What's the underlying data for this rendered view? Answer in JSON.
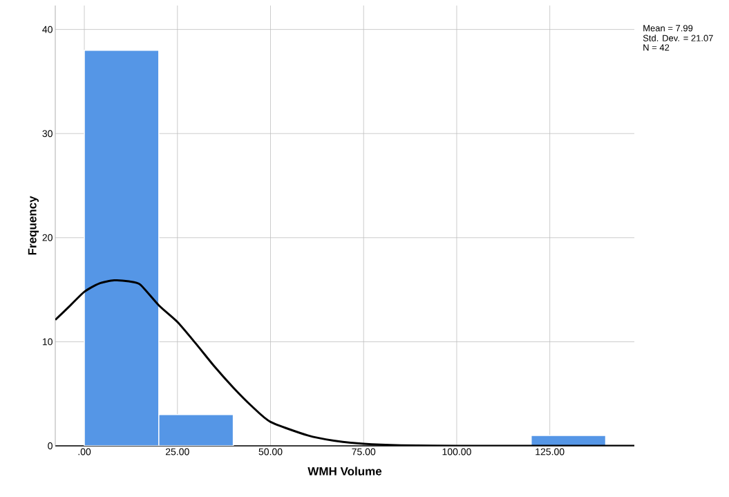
{
  "chart_data": {
    "type": "histogram",
    "xlabel": "WMH Volume",
    "ylabel": "Frequency",
    "annotations": [
      "Mean = 7.99",
      "Std. Dev. = 21.07",
      "N = 42"
    ],
    "bins": [
      0,
      20,
      40,
      60,
      80,
      100,
      120,
      140
    ],
    "values": [
      38,
      3,
      0,
      0,
      0,
      0,
      1
    ],
    "color": "#5596e6",
    "series": [
      {
        "type": "line",
        "color": "#000000",
        "x": [
          -7.8,
          -4,
          0,
          4,
          8,
          12,
          15,
          20,
          25,
          30,
          35,
          40,
          45,
          50,
          60,
          67,
          75,
          85,
          100,
          125,
          147.7
        ],
        "values": [
          12.1,
          13.4,
          14.8,
          15.6,
          15.9,
          15.8,
          15.5,
          13.5,
          11.9,
          9.8,
          7.6,
          5.6,
          3.8,
          2.3,
          1.0,
          0.5,
          0.2,
          0.05,
          0,
          0,
          0
        ]
      }
    ],
    "xlim": [
      -7.8,
      147.7
    ],
    "ylim": [
      0,
      42.3
    ],
    "xticks": [
      {
        "value": 0,
        "label": ".00"
      },
      {
        "value": 25,
        "label": "25.00"
      },
      {
        "value": 50,
        "label": "50.00"
      },
      {
        "value": 75,
        "label": "75.00"
      },
      {
        "value": 100,
        "label": "100.00"
      },
      {
        "value": 125,
        "label": "125.00"
      }
    ],
    "yticks": [
      0,
      10,
      20,
      30,
      40
    ],
    "grid": true,
    "marker": "none",
    "line_style": "solid"
  }
}
